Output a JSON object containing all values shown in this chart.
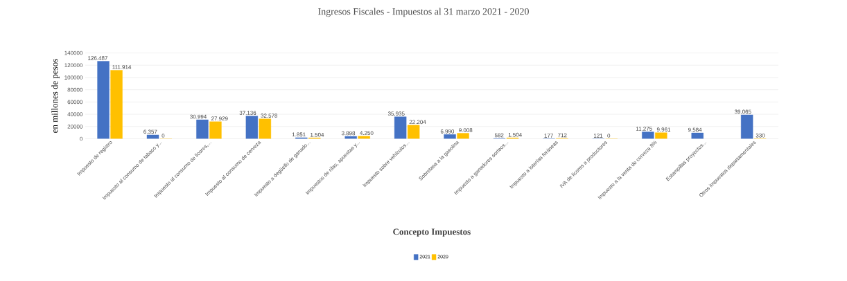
{
  "chart_data": {
    "type": "bar",
    "title": "Ingresos  Fiscales - Impuestos  al 31 marzo 2021 - 2020",
    "xlabel": "Concepto Impuestos",
    "ylabel": "en millones  de pesos",
    "categories": [
      "Impuesto de registro",
      "Impuesto al consumo de tabaco y...",
      "Impuesto al consumo de licores,...",
      "Impuesto al consumo de cerveza",
      "Impuesto a degüello de ganado...",
      "Impuestos de rifas, apuestas y...",
      "Impuesto sobre vehículos...",
      "Sobretasa a la gasolina",
      "Impuesto a ganadores sorteos...",
      "Impuesto a loterías foráneas",
      "IVA de licores a productores",
      "Impuesto a la venta de cerveza 8%",
      "Estampillas proyectos...",
      "Otros impuestos departamentales"
    ],
    "series": [
      {
        "name": "2021",
        "color": "#4472c4",
        "values": [
          126487,
          6357,
          30994,
          37136,
          1851,
          3898,
          35935,
          6990,
          582,
          177,
          121,
          11275,
          9584,
          39065
        ],
        "value_labels": [
          "126.487",
          "6.357",
          "30.994",
          "37.136",
          "1.851",
          "3.898",
          "35.935",
          "6.990",
          "582",
          "177",
          "121",
          "11.275",
          "9.584",
          "39.065"
        ]
      },
      {
        "name": "2020",
        "color": "#ffc000",
        "values": [
          111914,
          0,
          27929,
          32578,
          1504,
          4250,
          22204,
          9008,
          1504,
          712,
          0,
          9961,
          null,
          330
        ],
        "value_labels": [
          "111.914",
          "0",
          "27.929",
          "32.578",
          "1.504",
          "4.250",
          "22.204",
          "9.008",
          "1.504",
          "712",
          "0",
          "9.961",
          null,
          "330"
        ]
      }
    ],
    "ylim": [
      0,
      140000
    ],
    "yticks": [
      0,
      20000,
      40000,
      60000,
      80000,
      100000,
      120000,
      140000
    ],
    "grid": "y",
    "legend": "bottom"
  }
}
